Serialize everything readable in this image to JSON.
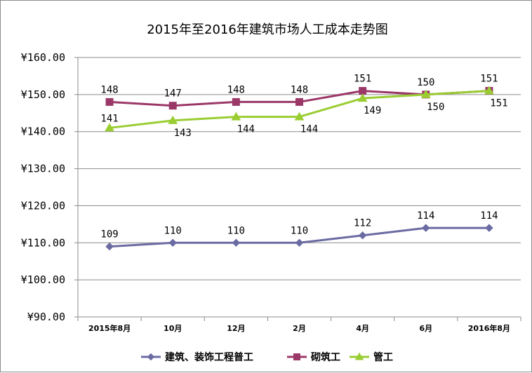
{
  "chart_data": {
    "type": "line",
    "title": "2015年至2016年建筑市场人工成本走势图",
    "xlabel": "",
    "ylabel": "",
    "categories": [
      "2015年8月",
      "10月",
      "12月",
      "2月",
      "4月",
      "6月",
      "2016年8月"
    ],
    "ylim": [
      90,
      160
    ],
    "yticks": [
      "¥90.00",
      "¥100.00",
      "¥110.00",
      "¥120.00",
      "¥130.00",
      "¥140.00",
      "¥150.00",
      "¥160.00"
    ],
    "grid": true,
    "legend_position": "bottom",
    "series": [
      {
        "name": "建筑、装饰工程普工",
        "values": [
          109,
          110,
          110,
          110,
          112,
          114,
          114
        ],
        "labels": [
          "109",
          "110",
          "110",
          "110",
          "112",
          "114",
          "114"
        ],
        "color": "#6b6ba3",
        "marker": "diamond",
        "label_position": "above"
      },
      {
        "name": "砌筑工",
        "values": [
          148,
          147,
          148,
          148,
          151,
          150,
          151
        ],
        "labels": [
          "148",
          "147",
          "148",
          "148",
          "151",
          "150",
          "151"
        ],
        "color": "#9b3868",
        "marker": "square",
        "label_position": "above"
      },
      {
        "name": "管工",
        "values": [
          141,
          143,
          144,
          144,
          149,
          150,
          151
        ],
        "labels": [
          "141",
          "143",
          "144",
          "144",
          "149",
          "150",
          "151"
        ],
        "color": "#9acd32",
        "marker": "triangle",
        "label_position": "mixed"
      }
    ]
  }
}
